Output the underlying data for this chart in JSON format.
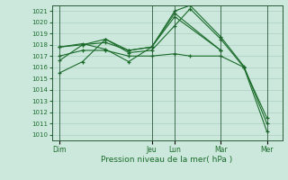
{
  "background_color": "#cce8dc",
  "grid_color": "#aad0c0",
  "line_color": "#1a6b2a",
  "xlabel": "Pression niveau de la mer( hPa )",
  "ylim": [
    1009.5,
    1021.5
  ],
  "yticks": [
    1010,
    1011,
    1012,
    1013,
    1014,
    1015,
    1016,
    1017,
    1018,
    1019,
    1020,
    1021
  ],
  "xtick_labels": [
    "Dim",
    "Jeu",
    "Lun",
    "Mar",
    "Mer"
  ],
  "xtick_positions": [
    0,
    12,
    15,
    21,
    27
  ],
  "xlim": [
    -1,
    29
  ],
  "vlines": [
    0,
    12,
    15,
    21,
    27
  ],
  "lines": [
    {
      "x": [
        0,
        3,
        6,
        9,
        12,
        15,
        17,
        21,
        24,
        27
      ],
      "y": [
        1015.5,
        1016.5,
        1018.5,
        1017.3,
        1017.5,
        1019.7,
        1021.2,
        1018.5,
        1016.0,
        1010.3
      ]
    },
    {
      "x": [
        0,
        3,
        6,
        9,
        12,
        15,
        17,
        21,
        24,
        27
      ],
      "y": [
        1016.6,
        1018.0,
        1018.2,
        1017.5,
        1017.8,
        1021.0,
        1021.5,
        1018.7,
        1016.1,
        1011.0
      ]
    },
    {
      "x": [
        0,
        3,
        6,
        9,
        12,
        15,
        21
      ],
      "y": [
        1017.8,
        1018.0,
        1018.5,
        1017.5,
        1017.8,
        1020.5,
        1017.5
      ]
    },
    {
      "x": [
        0,
        3,
        6,
        9,
        12,
        15,
        21
      ],
      "y": [
        1017.8,
        1018.1,
        1017.6,
        1016.5,
        1017.8,
        1020.8,
        1017.5
      ]
    },
    {
      "x": [
        0,
        3,
        6,
        9,
        12,
        15,
        17,
        21,
        24,
        27
      ],
      "y": [
        1017.0,
        1017.5,
        1017.5,
        1017.0,
        1017.0,
        1017.2,
        1017.0,
        1017.0,
        1016.0,
        1011.5
      ]
    }
  ]
}
